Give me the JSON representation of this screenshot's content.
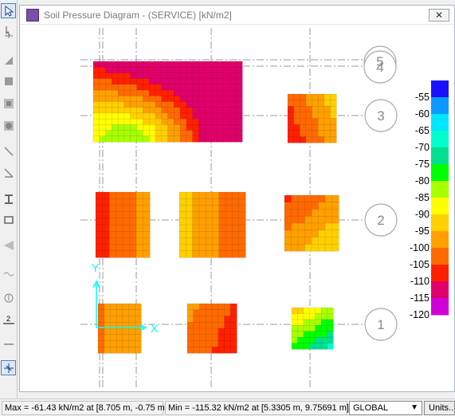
{
  "window": {
    "title": "Soil Pressure Diagram - (SERVICE)  [kN/m2]",
    "close_label": "✕"
  },
  "grid_labels": {
    "top_stacked": [
      "5",
      "4"
    ],
    "rows": [
      "3",
      "2",
      "1"
    ]
  },
  "legend": {
    "values": [
      "-55",
      "-60",
      "-65",
      "-70",
      "-75",
      "-80",
      "-85",
      "-90",
      "-95",
      "-100",
      "-105",
      "-110",
      "-115",
      "-120"
    ],
    "colors": [
      "#1a10ff",
      "#0a9aff",
      "#00e6ff",
      "#00ffcc",
      "#00e090",
      "#00ff00",
      "#a8ff00",
      "#ffff00",
      "#ffd000",
      "#ffa000",
      "#ff6a00",
      "#ff2000",
      "#e0006a",
      "#d000d8"
    ]
  },
  "status": {
    "max_text": "Max = -61.43 kN/m2 at [8.705 m, -0.75 m]",
    "min_text": "Min = -115.32 kN/m2 at [5.3305 m, 9.75691 m]",
    "coord_system": "GLOBAL",
    "units_label": "Units..."
  },
  "toolbar": {
    "icons": [
      "pointer-icon",
      "reshape-icon",
      "area-icon",
      "rectangle-icon",
      "slab-icon",
      "circle-icon",
      "line-icon",
      "brace-icon",
      "column-icon",
      "wall-icon",
      "ramp-icon",
      "tendon-icon",
      "point-icon",
      "dimension-icon",
      "divider-icon",
      "snap-icon"
    ]
  },
  "axis_marker": {
    "x_label": "X",
    "y_label": "Y"
  }
}
